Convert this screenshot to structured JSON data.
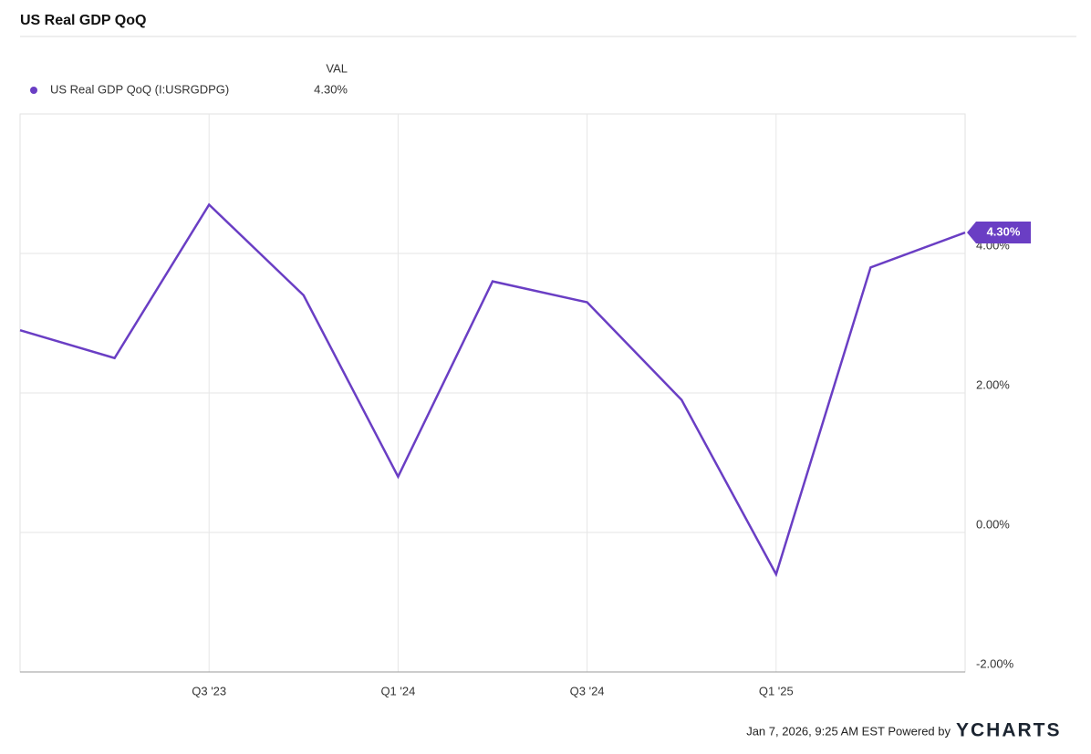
{
  "chart_data": {
    "type": "line",
    "title": "US Real GDP QoQ",
    "legend_header": "VAL",
    "categories": [
      null,
      null,
      "Q3 '23",
      null,
      "Q1 '24",
      null,
      "Q3 '24",
      null,
      "Q1 '25",
      null,
      null
    ],
    "series": [
      {
        "name": "US Real GDP QoQ (I:USRGDPG)",
        "color": "#6a3ec4",
        "values": [
          2.9,
          2.5,
          4.7,
          3.4,
          0.8,
          3.6,
          3.3,
          1.9,
          -0.6,
          3.8,
          4.3
        ],
        "value_labels": [
          null,
          null,
          null,
          null,
          null,
          null,
          null,
          null,
          null,
          null,
          "4.30%"
        ]
      }
    ],
    "ylim": [
      -2,
      6
    ],
    "yticks": [
      {
        "value": -2,
        "label": "-2.00%"
      },
      {
        "value": 0,
        "label": "0.00%"
      },
      {
        "value": 2,
        "label": "2.00%"
      },
      {
        "value": 4,
        "label": "4.00%"
      }
    ],
    "grid": true,
    "footer": "Jan 7, 2026, 9:25 AM EST Powered by",
    "brand": "YCHARTS"
  }
}
